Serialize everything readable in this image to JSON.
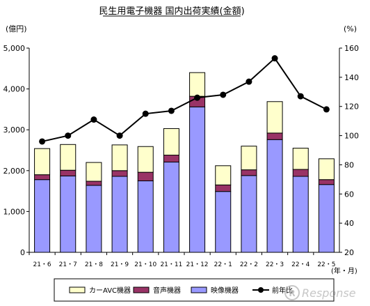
{
  "chart_data": {
    "type": "bar",
    "title": "民生用電子機器 国内出荷実績(金額)",
    "ylabel_left": "(億円)",
    "ylabel_right": "(%)",
    "xlabel": "(年・月)",
    "categories": [
      "21・6",
      "21・7",
      "21・8",
      "21・9",
      "21・10",
      "21・11",
      "21・12",
      "22・1",
      "22・2",
      "22・3",
      "22・4",
      "22・5"
    ],
    "left_axis": {
      "min": 0,
      "max": 5000,
      "ticks": [
        "0",
        "1,000",
        "2,000",
        "3,000",
        "4,000",
        "5,000"
      ]
    },
    "right_axis": {
      "min": 20,
      "max": 160,
      "ticks": [
        "20",
        "40",
        "60",
        "80",
        "100",
        "120",
        "140",
        "160"
      ]
    },
    "stacked": true,
    "series": [
      {
        "name": "映像機器",
        "type": "bar",
        "color": "#9999ff",
        "values": [
          1780,
          1870,
          1640,
          1860,
          1750,
          2210,
          3560,
          1490,
          1880,
          2760,
          1860,
          1660
        ]
      },
      {
        "name": "音声機器",
        "type": "bar",
        "color": "#993366",
        "values": [
          120,
          140,
          100,
          140,
          210,
          170,
          260,
          160,
          140,
          160,
          170,
          120
        ]
      },
      {
        "name": "カーAVC機器",
        "type": "bar",
        "color": "#ffffcc",
        "values": [
          640,
          630,
          460,
          630,
          630,
          650,
          580,
          470,
          580,
          770,
          520,
          510
        ]
      },
      {
        "name": "前年比",
        "type": "line",
        "axis": "right",
        "color": "#000000",
        "values": [
          96,
          100,
          111,
          100,
          115,
          117,
          126,
          128,
          137,
          153,
          127,
          118
        ]
      }
    ],
    "legend": {
      "position": "bottom"
    },
    "grid": false
  },
  "watermark": {
    "text": "Response",
    "prefix": "R"
  }
}
